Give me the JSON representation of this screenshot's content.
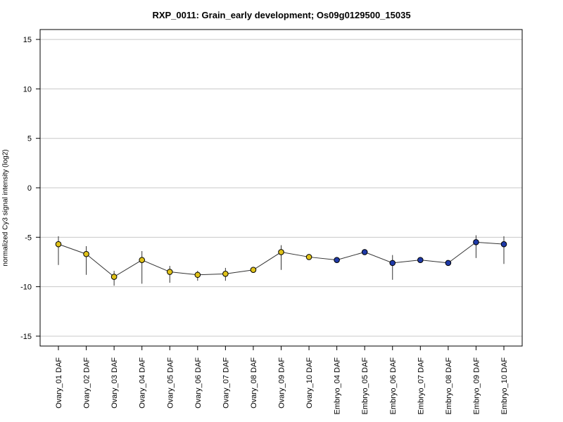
{
  "chart_data": {
    "type": "line",
    "title": "RXP_0011: Grain_early development; Os09g0129500_15035",
    "xlabel": "",
    "ylabel": "normalized Cy3 signal intensity (log2)",
    "ylim": [
      -16,
      16
    ],
    "yticks": [
      -15,
      -10,
      -5,
      0,
      5,
      10,
      15
    ],
    "grid": "horizontal",
    "categories": [
      "Ovary_01 DAF",
      "Ovary_02 DAF",
      "Ovary_03 DAF",
      "Ovary_04 DAF",
      "Ovary_05 DAF",
      "Ovary_06 DAF",
      "Ovary_07 DAF",
      "Ovary_08 DAF",
      "Ovary_09 DAF",
      "Ovary_10 DAF",
      "Embryo_04 DAF",
      "Embryo_05 DAF",
      "Embryo_06 DAF",
      "Embryo_07 DAF",
      "Embryo_08 DAF",
      "Embryo_09 DAF",
      "Embryo_10 DAF"
    ],
    "values": [
      -5.7,
      -6.7,
      -9.0,
      -7.3,
      -8.5,
      -8.8,
      -8.7,
      -8.3,
      -6.5,
      -7.0,
      -7.3,
      -6.5,
      -7.6,
      -7.3,
      -7.6,
      -5.5,
      -5.7
    ],
    "error_low": [
      -7.8,
      -8.8,
      -9.9,
      -9.7,
      -9.6,
      -9.4,
      -9.4,
      -8.6,
      -8.3,
      -7.2,
      -7.4,
      -6.6,
      -9.3,
      -7.4,
      -7.7,
      -7.1,
      -7.7
    ],
    "error_high": [
      -4.9,
      -5.9,
      -8.4,
      -6.4,
      -7.9,
      -8.4,
      -8.1,
      -8.0,
      -5.8,
      -6.7,
      -7.1,
      -6.3,
      -6.8,
      -7.1,
      -7.4,
      -4.8,
      -4.9
    ],
    "point_colors": [
      "#e0c21a",
      "#e0c21a",
      "#e0c21a",
      "#e0c21a",
      "#e0c21a",
      "#e0c21a",
      "#e0c21a",
      "#e0c21a",
      "#e0c21a",
      "#e0c21a",
      "#1f3aa8",
      "#1f3aa8",
      "#1f3aa8",
      "#1f3aa8",
      "#1f3aa8",
      "#1f3aa8",
      "#1f3aa8"
    ]
  }
}
